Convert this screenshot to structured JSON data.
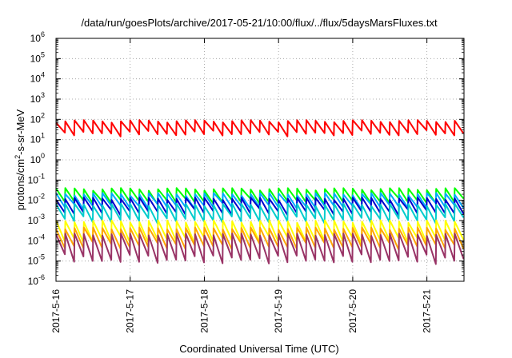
{
  "chart_data": {
    "type": "line",
    "title": "/data/run/goesPlots/archive/2017-05-21/10:00/flux/../flux/5daysMarsFluxes.txt",
    "xlabel": "Coordinated Universal Time (UTC)",
    "ylabel_prefix": "protons/cm",
    "ylabel_sup": "2",
    "ylabel_suffix": "-s-sr-MeV",
    "x_range_days": [
      0,
      5.5
    ],
    "x_ticks": [
      {
        "day": 0,
        "label": "2017-5-16"
      },
      {
        "day": 1,
        "label": "2017-5-17"
      },
      {
        "day": 2,
        "label": "2017-5-18"
      },
      {
        "day": 3,
        "label": "2017-5-19"
      },
      {
        "day": 4,
        "label": "2017-5-20"
      },
      {
        "day": 5,
        "label": "2017-5-21"
      }
    ],
    "y_scale": "log",
    "ylim": [
      1e-06,
      1000000.0
    ],
    "y_ticks": [
      {
        "exp": -6,
        "base": "10",
        "sup": "-6"
      },
      {
        "exp": -5,
        "base": "10",
        "sup": "-5"
      },
      {
        "exp": -4,
        "base": "10",
        "sup": "-4"
      },
      {
        "exp": -3,
        "base": "10",
        "sup": "-3"
      },
      {
        "exp": -2,
        "base": "10",
        "sup": "-2"
      },
      {
        "exp": -1,
        "base": "10",
        "sup": "-1"
      },
      {
        "exp": 0,
        "base": "10",
        "sup": "0"
      },
      {
        "exp": 1,
        "base": "10",
        "sup": "1"
      },
      {
        "exp": 2,
        "base": "10",
        "sup": "2"
      },
      {
        "exp": 3,
        "base": "10",
        "sup": "3"
      },
      {
        "exp": 4,
        "base": "10",
        "sup": "4"
      },
      {
        "exp": 5,
        "base": "10",
        "sup": "5"
      },
      {
        "exp": 6,
        "base": "10",
        "sup": "6"
      }
    ],
    "grid": true,
    "series": [
      {
        "color": "#ff0000",
        "peak": 80,
        "trough": 16
      },
      {
        "color": "#00ff00",
        "peak": 0.035,
        "trough": 0.007
      },
      {
        "color": "#00aaff",
        "peak": 0.02,
        "trough": 0.004
      },
      {
        "color": "#0000cc",
        "peak": 0.012,
        "trough": 0.002
      },
      {
        "color": "#00cccc",
        "peak": 0.006,
        "trough": 0.0008
      },
      {
        "color": "#ffff00",
        "peak": 0.0009,
        "trough": 8e-05
      },
      {
        "color": "#ffa500",
        "peak": 0.0004,
        "trough": 4e-05
      },
      {
        "color": "#993366",
        "peak": 0.0002,
        "trough": 8e-06
      }
    ],
    "sawtooth_period_days": 0.125
  }
}
